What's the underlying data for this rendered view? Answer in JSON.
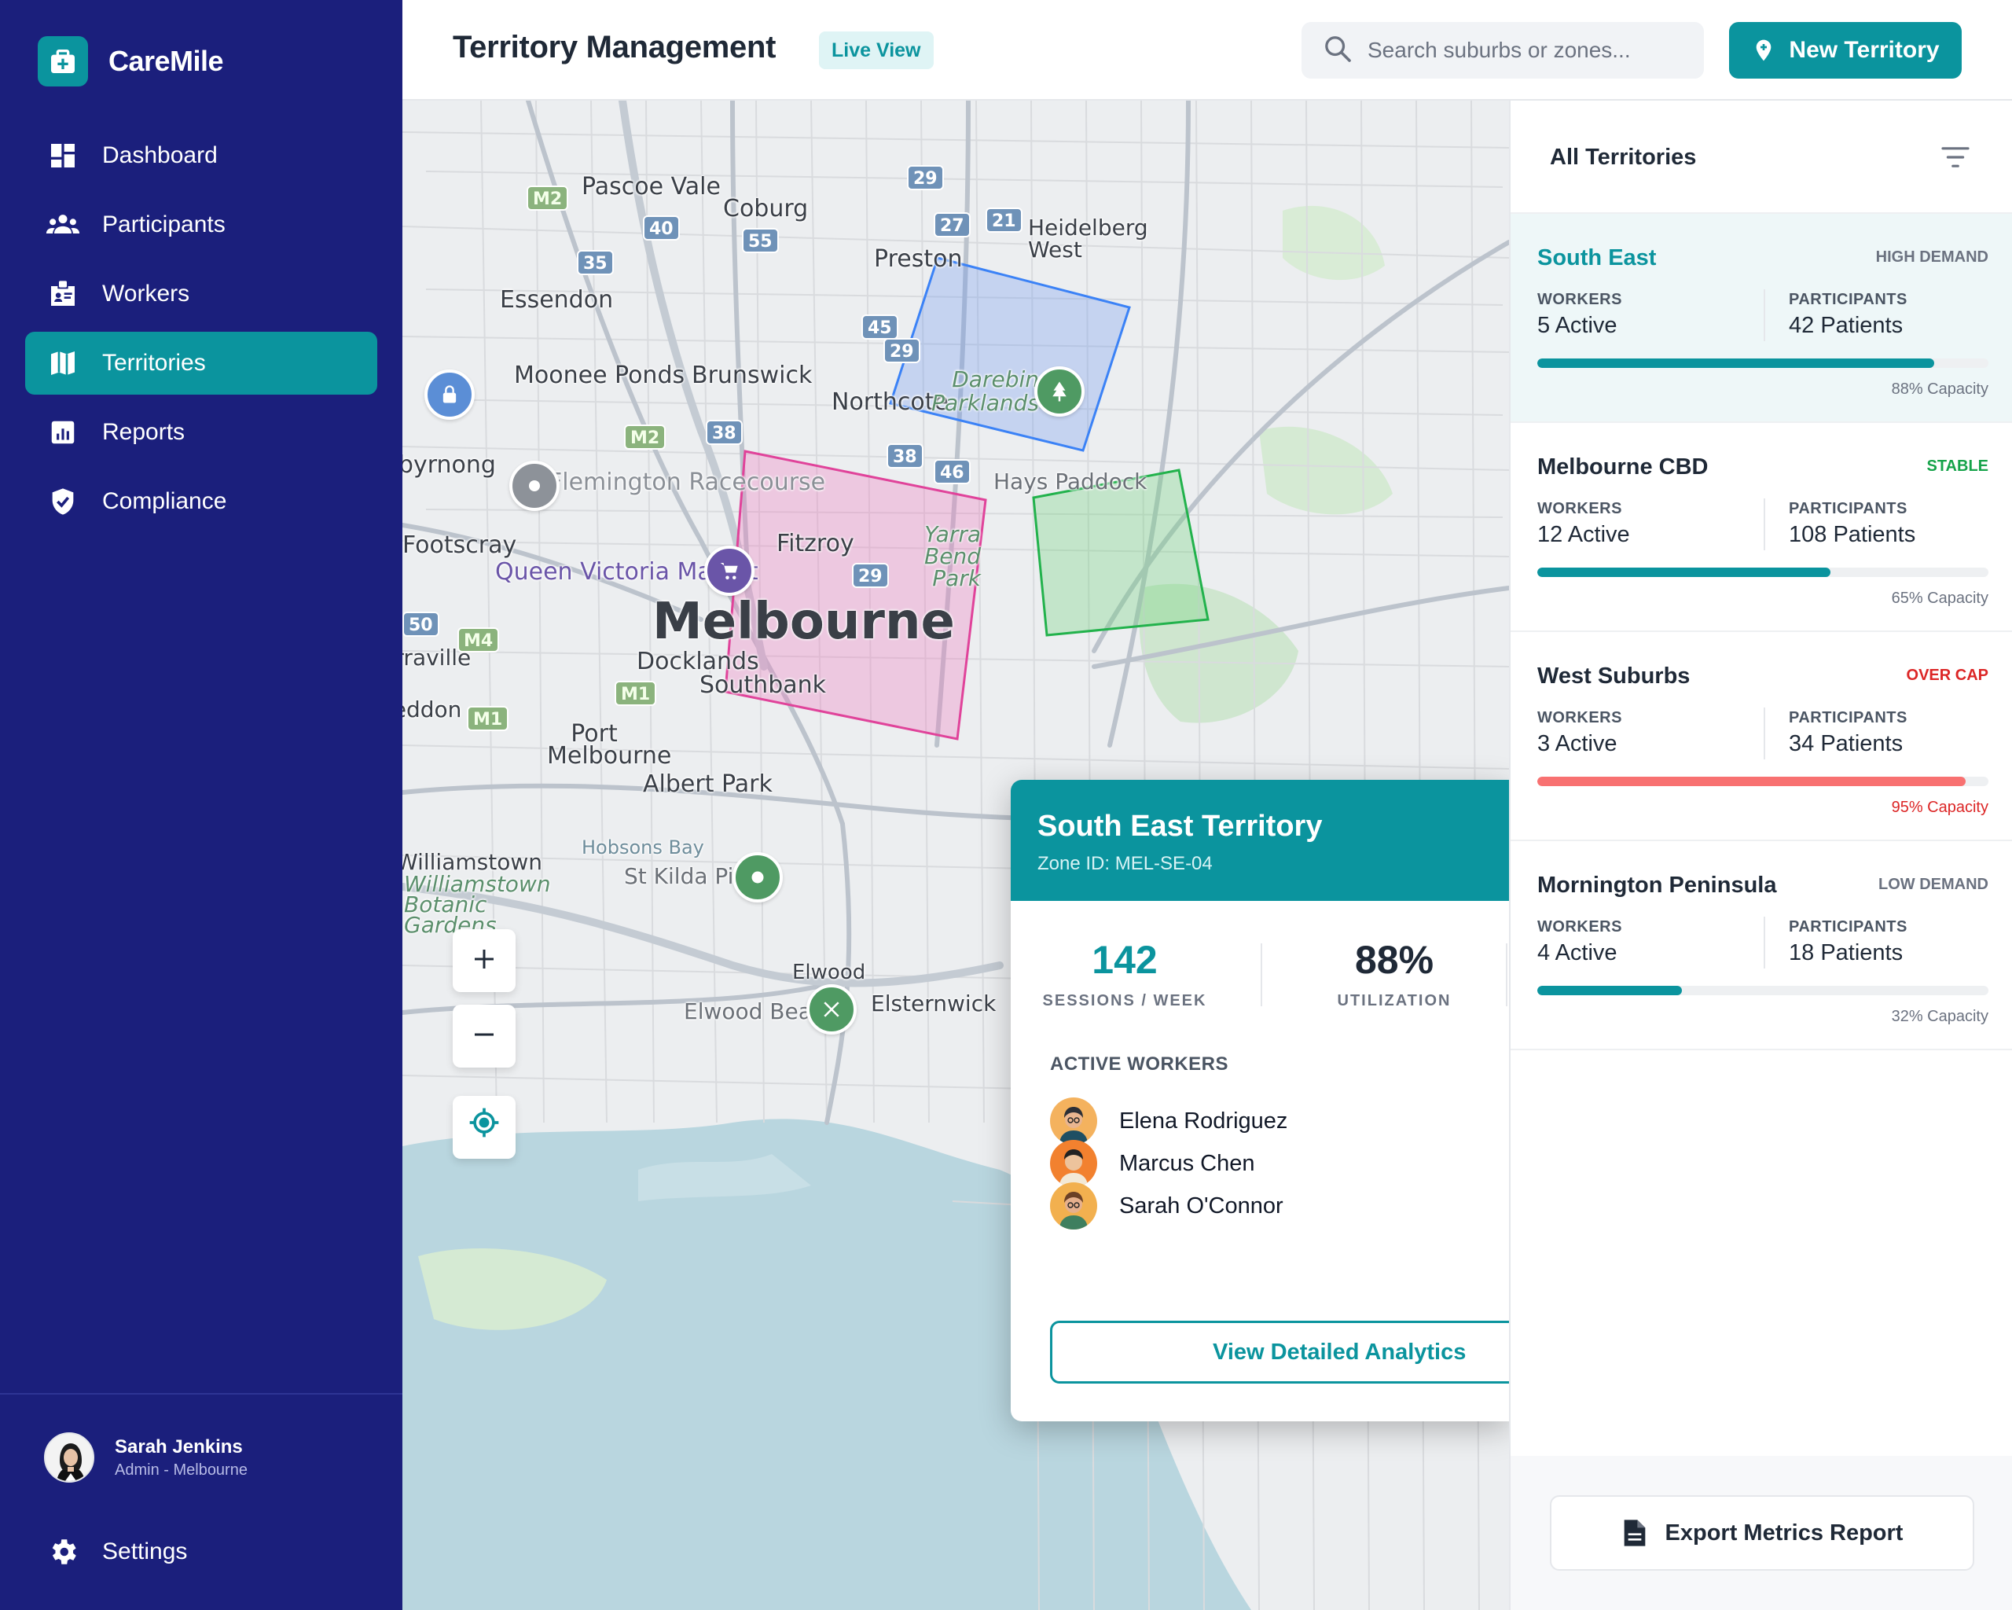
{
  "app": {
    "name": "CareMile"
  },
  "nav": {
    "items": [
      {
        "label": "Dashboard",
        "icon": "dashboard-icon"
      },
      {
        "label": "Participants",
        "icon": "people-icon"
      },
      {
        "label": "Workers",
        "icon": "badge-icon"
      },
      {
        "label": "Territories",
        "icon": "map-icon",
        "active": true
      },
      {
        "label": "Reports",
        "icon": "chart-icon"
      },
      {
        "label": "Compliance",
        "icon": "shield-icon"
      }
    ],
    "settings_label": "Settings"
  },
  "user": {
    "name": "Sarah Jenkins",
    "role": "Admin - Melbourne"
  },
  "header": {
    "title": "Territory Management",
    "badge": "Live View",
    "search_placeholder": "Search suburbs or zones...",
    "new_button": "New Territory"
  },
  "map": {
    "suburbs": [
      "Pascoe Vale",
      "Coburg",
      "Preston",
      "Essendon",
      "Moonee Ponds",
      "Brunswick",
      "Northcote",
      "Darebin Parklands",
      "Flemington Racecourse",
      "Maribyrnong",
      "Footscray",
      "Queen Victoria Market",
      "Melbourne",
      "Docklands",
      "Southbank",
      "Port Melbourne",
      "Albert Park",
      "Fitzroy",
      "Yarra Bend Park",
      "Hays Paddock",
      "Hobsons Bay",
      "St Kilda Pier",
      "Williamstown",
      "Williamstown Botanic Gardens",
      "Elwood",
      "Elwood Beach",
      "Elsternwick",
      "Heidelberg West",
      "Yarraville",
      "Seddon"
    ],
    "road_shields": [
      "M2",
      "40",
      "55",
      "35",
      "29",
      "27",
      "21",
      "45",
      "29",
      "M2",
      "38",
      "38",
      "46",
      "50",
      "M4",
      "M1",
      "M1",
      "29"
    ],
    "zone_colors": {
      "blue": "#3b82f6",
      "pink": "#e0439a",
      "green": "#22b24c"
    }
  },
  "popup": {
    "title": "South East Territory",
    "zone_id": "Zone ID: MEL-SE-04",
    "stats": [
      {
        "value": "142",
        "label": "SESSIONS / WEEK",
        "color": "#0b949e"
      },
      {
        "value": "88%",
        "label": "UTILIZATION",
        "color": "#1f2937"
      }
    ],
    "active_workers_title": "ACTIVE WORKERS",
    "workers": [
      "Elena Rodriguez",
      "Marcus Chen",
      "Sarah O'Connor"
    ],
    "button": "View Detailed Analytics"
  },
  "panel": {
    "title": "All Territories",
    "territories": [
      {
        "name": "South East",
        "status": "HIGH DEMAND",
        "status_color": "#6b7280",
        "workers_label": "WORKERS",
        "workers": "5 Active",
        "participants_label": "PARTICIPANTS",
        "participants": "42 Patients",
        "capacity": 0.88,
        "capacity_label": "88% Capacity",
        "bar_color": "#0b949e",
        "cap_color": "#6b7280"
      },
      {
        "name": "Melbourne CBD",
        "status": "STABLE",
        "status_color": "#16a34a",
        "workers_label": "WORKERS",
        "workers": "12 Active",
        "participants_label": "PARTICIPANTS",
        "participants": "108 Patients",
        "capacity": 0.65,
        "capacity_label": "65% Capacity",
        "bar_color": "#0b949e",
        "cap_color": "#6b7280"
      },
      {
        "name": "West Suburbs",
        "status": "OVER CAP",
        "status_color": "#dc2626",
        "workers_label": "WORKERS",
        "workers": "3 Active",
        "participants_label": "PARTICIPANTS",
        "participants": "34 Patients",
        "capacity": 0.95,
        "capacity_label": "95% Capacity",
        "bar_color": "#f87171",
        "cap_color": "#dc2626"
      },
      {
        "name": "Mornington Peninsula",
        "status": "LOW DEMAND",
        "status_color": "#6b7280",
        "workers_label": "WORKERS",
        "workers": "4 Active",
        "participants_label": "PARTICIPANTS",
        "participants": "18 Patients",
        "capacity": 0.32,
        "capacity_label": "32% Capacity",
        "bar_color": "#0b949e",
        "cap_color": "#6b7280"
      }
    ],
    "export_button": "Export Metrics Report"
  }
}
